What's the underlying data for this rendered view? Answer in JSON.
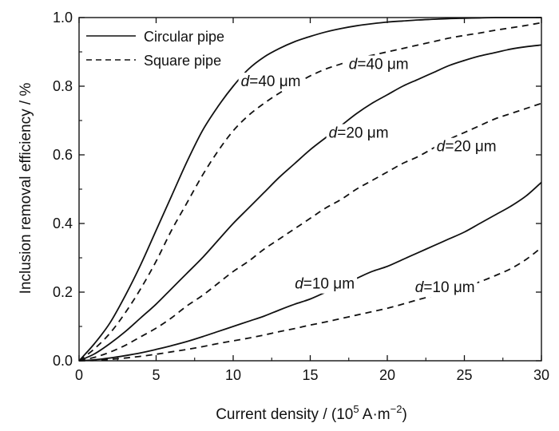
{
  "chart_data": {
    "type": "line",
    "xlabel": "Current density / (10",
    "xlabel_sup": "5",
    "xlabel_unit": " A·m",
    "xlabel_unit_sup": "−2",
    "xlabel_close": ")",
    "ylabel": "Inclusion removal efficiency / %",
    "xlim": [
      0,
      30
    ],
    "ylim": [
      0,
      1.0
    ],
    "x_ticks": [
      0,
      5,
      10,
      15,
      20,
      25,
      30
    ],
    "x_tick_labels": [
      "0",
      "5",
      "10",
      "15",
      "20",
      "25",
      "30"
    ],
    "y_ticks": [
      0,
      0.2,
      0.4,
      0.6,
      0.8,
      1.0
    ],
    "y_tick_labels": [
      "0.0",
      "0.2",
      "0.4",
      "0.6",
      "0.8",
      "1.0"
    ],
    "grid": false,
    "legend": {
      "placement": "top-left",
      "entries": [
        {
          "label": "Circular pipe",
          "style": "solid"
        },
        {
          "label": "Square pipe",
          "style": "dashed"
        }
      ]
    },
    "line_color": "#111111",
    "x": [
      0,
      1,
      2,
      3,
      4,
      5,
      6,
      7,
      8,
      9,
      10,
      11,
      12,
      13,
      14,
      15,
      16,
      17,
      18,
      19,
      20,
      21,
      22,
      23,
      24,
      25,
      26,
      27,
      28,
      29,
      30
    ],
    "series": [
      {
        "label": "d=40 μm",
        "pipe": "Circular pipe",
        "style": "solid",
        "values": [
          0,
          0.05,
          0.11,
          0.19,
          0.28,
          0.38,
          0.48,
          0.58,
          0.67,
          0.74,
          0.8,
          0.85,
          0.885,
          0.91,
          0.93,
          0.945,
          0.958,
          0.968,
          0.976,
          0.982,
          0.987,
          0.99,
          0.993,
          0.995,
          0.997,
          0.998,
          0.999,
          1.0,
          1.0,
          1.0,
          1.0
        ]
      },
      {
        "label": "d=40 μm",
        "pipe": "Square pipe",
        "style": "dashed",
        "values": [
          0,
          0.035,
          0.08,
          0.14,
          0.21,
          0.29,
          0.38,
          0.46,
          0.54,
          0.61,
          0.67,
          0.715,
          0.75,
          0.78,
          0.805,
          0.83,
          0.85,
          0.865,
          0.88,
          0.89,
          0.9,
          0.91,
          0.92,
          0.93,
          0.94,
          0.948,
          0.955,
          0.963,
          0.97,
          0.977,
          0.985
        ]
      },
      {
        "label": "d=20 μm",
        "pipe": "Circular pipe",
        "style": "solid",
        "values": [
          0,
          0.02,
          0.05,
          0.085,
          0.125,
          0.165,
          0.21,
          0.255,
          0.3,
          0.35,
          0.4,
          0.445,
          0.49,
          0.535,
          0.575,
          0.615,
          0.65,
          0.685,
          0.72,
          0.75,
          0.775,
          0.8,
          0.82,
          0.84,
          0.86,
          0.875,
          0.888,
          0.898,
          0.908,
          0.915,
          0.92
        ]
      },
      {
        "label": "d=20 μm",
        "pipe": "Square pipe",
        "style": "dashed",
        "values": [
          0,
          0.01,
          0.025,
          0.045,
          0.07,
          0.095,
          0.125,
          0.16,
          0.19,
          0.225,
          0.26,
          0.29,
          0.325,
          0.355,
          0.385,
          0.415,
          0.445,
          0.47,
          0.5,
          0.525,
          0.55,
          0.575,
          0.595,
          0.62,
          0.645,
          0.665,
          0.685,
          0.705,
          0.72,
          0.735,
          0.75
        ]
      },
      {
        "label": "d=10 μm",
        "pipe": "Circular pipe",
        "style": "solid",
        "values": [
          0,
          0.003,
          0.008,
          0.015,
          0.023,
          0.033,
          0.044,
          0.056,
          0.07,
          0.085,
          0.1,
          0.115,
          0.13,
          0.148,
          0.165,
          0.18,
          0.2,
          0.22,
          0.24,
          0.26,
          0.275,
          0.295,
          0.315,
          0.335,
          0.355,
          0.375,
          0.4,
          0.425,
          0.45,
          0.48,
          0.52
        ]
      },
      {
        "label": "d=10 μm",
        "pipe": "Square pipe",
        "style": "dashed",
        "values": [
          0,
          0.001,
          0.004,
          0.008,
          0.013,
          0.019,
          0.026,
          0.033,
          0.041,
          0.05,
          0.058,
          0.066,
          0.075,
          0.085,
          0.094,
          0.104,
          0.113,
          0.123,
          0.133,
          0.143,
          0.153,
          0.165,
          0.178,
          0.19,
          0.203,
          0.215,
          0.23,
          0.248,
          0.268,
          0.295,
          0.33
        ]
      }
    ],
    "annotations": [
      {
        "d": "d",
        "rest": "=40 μm",
        "x": 10.5,
        "y": 0.8
      },
      {
        "d": "d",
        "rest": "=40 μm",
        "x": 17.5,
        "y": 0.85
      },
      {
        "d": "d",
        "rest": "=20 μm",
        "x": 16.2,
        "y": 0.65
      },
      {
        "d": "d",
        "rest": "=20 μm",
        "x": 23.2,
        "y": 0.61
      },
      {
        "d": "d",
        "rest": "=10 μm",
        "x": 14.0,
        "y": 0.21
      },
      {
        "d": "d",
        "rest": "=10 μm",
        "x": 21.8,
        "y": 0.2
      }
    ]
  }
}
